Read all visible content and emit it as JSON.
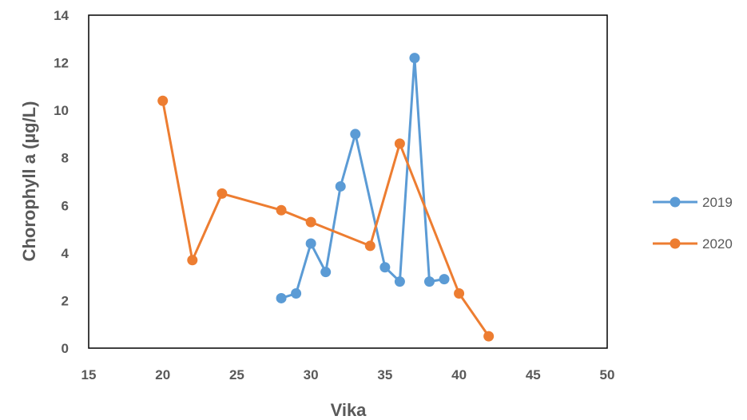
{
  "chart_data": {
    "type": "scatter",
    "xlabel": "Vika",
    "ylabel": "Chorophyll a (µg/L)",
    "xlim": [
      15,
      50
    ],
    "ylim": [
      0,
      14
    ],
    "xticks": [
      15,
      20,
      25,
      30,
      35,
      40,
      45,
      50
    ],
    "yticks": [
      0,
      2,
      4,
      6,
      8,
      10,
      12,
      14
    ],
    "grid": false,
    "legend_position": "right",
    "series": [
      {
        "name": "2019",
        "color": "#5B9BD5",
        "x": [
          28,
          29,
          30,
          31,
          32,
          33,
          35,
          36,
          37,
          38,
          39
        ],
        "y": [
          2.1,
          2.3,
          4.4,
          3.2,
          6.8,
          9.0,
          3.4,
          2.8,
          12.2,
          2.8,
          2.9
        ]
      },
      {
        "name": "2020",
        "color": "#ED7D31",
        "x": [
          20,
          22,
          24,
          28,
          30,
          34,
          36,
          40,
          42
        ],
        "y": [
          10.4,
          3.7,
          6.5,
          5.8,
          5.3,
          4.3,
          8.6,
          2.3,
          0.5
        ]
      }
    ]
  }
}
